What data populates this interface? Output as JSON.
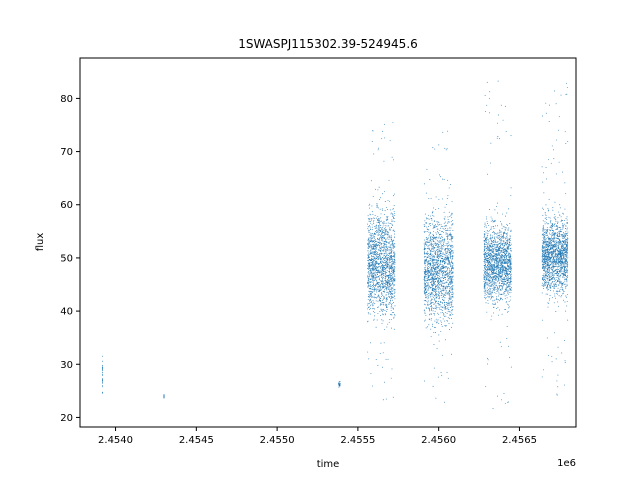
{
  "chart_data": {
    "type": "scatter",
    "title": "1SWASPJ115302.39-524945.6",
    "xlabel": "time",
    "ylabel": "flux",
    "x_offset_label": "1e6",
    "x_ticks": [
      2.454,
      2.4545,
      2.455,
      2.4555,
      2.456,
      2.4565
    ],
    "x_tick_labels": [
      "2.4540",
      "2.4545",
      "2.4550",
      "2.4555",
      "2.4560",
      "2.4565"
    ],
    "y_ticks": [
      20,
      30,
      40,
      50,
      60,
      70,
      80
    ],
    "y_tick_labels": [
      "20",
      "30",
      "40",
      "50",
      "60",
      "70",
      "80"
    ],
    "xlim": [
      2.45378,
      2.45685
    ],
    "ylim": [
      18.2,
      87.6
    ],
    "grid": false,
    "marker_color": "#1f77b4",
    "clusters": [
      {
        "x": [
          2.45392,
          2.45392
        ],
        "y_core": [
          22,
          33
        ],
        "y_extent": [
          21.5,
          33.5
        ]
      },
      {
        "x": [
          2.4543,
          2.4543
        ],
        "y_core": [
          23.5,
          24.5
        ],
        "y_extent": [
          23.2,
          24.8
        ]
      },
      {
        "x": [
          2.45538,
          2.45539
        ],
        "y_core": [
          25.5,
          27
        ],
        "y_extent": [
          25,
          27.5
        ]
      },
      {
        "x": [
          2.45556,
          2.45573
        ],
        "y_core": [
          34,
          64
        ],
        "y_extent": [
          22.5,
          77.5
        ]
      },
      {
        "x": [
          2.45591,
          2.45609
        ],
        "y_core": [
          33,
          63
        ],
        "y_extent": [
          22,
          74
        ]
      },
      {
        "x": [
          2.45628,
          2.45645
        ],
        "y_core": [
          38,
          60
        ],
        "y_extent": [
          21.5,
          84
        ]
      },
      {
        "x": [
          2.45664,
          2.4568
        ],
        "y_core": [
          40,
          61
        ],
        "y_extent": [
          23.5,
          83
        ]
      }
    ]
  }
}
